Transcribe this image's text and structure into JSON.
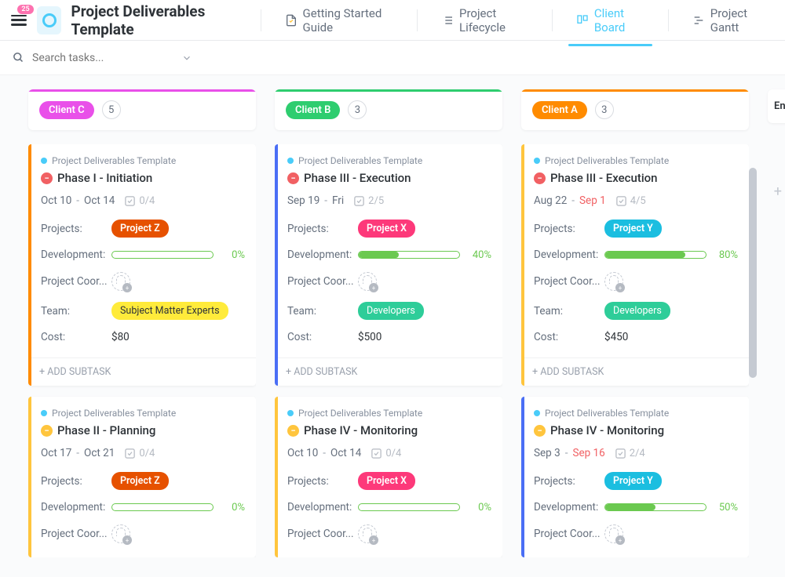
{
  "header": {
    "badge": "25",
    "title": "Project Deliverables Template",
    "tabs": [
      {
        "label": "Getting Started Guide",
        "icon": "doc",
        "active": false
      },
      {
        "label": "Project Lifecycle",
        "icon": "list",
        "active": false
      },
      {
        "label": "Client Board",
        "icon": "board",
        "active": true
      },
      {
        "label": "Project Gantt",
        "icon": "gantt",
        "active": false
      }
    ]
  },
  "search": {
    "placeholder": "Search tasks..."
  },
  "colors": {
    "clientA": "#ff8b00",
    "clientB": "#2ecd6f",
    "clientC": "#e950e9",
    "projectY": "#1bbee0",
    "projectX": "#fd397a",
    "projectZ": "#e65100",
    "teamDev": "#2ecd99",
    "teamSME": "#ffeb3b",
    "teamSMEText": "#2e3338",
    "accentYellow": "#ffc53d",
    "accentBlue": "#4a6ef5",
    "accentOrange": "#ff8b00"
  },
  "columns": [
    {
      "name": "Client A",
      "color": "#ff8b00",
      "count": "3",
      "cards": [
        {
          "accent": "#ffc53d",
          "crumb": "Project Deliverables Template",
          "statusIcon": "minus",
          "title": "Phase III - Execution",
          "start": "Aug 22",
          "end": "Sep 1",
          "overdue": true,
          "checks": "4/5",
          "project": {
            "label": "Project Y",
            "color": "#1bbee0"
          },
          "devPct": 80,
          "team": {
            "label": "Developers",
            "color": "#2ecd99",
            "text": "#fff"
          },
          "cost": "$450"
        },
        {
          "accent": "#4a6ef5",
          "crumb": "Project Deliverables Template",
          "statusIcon": "plus",
          "title": "Phase IV - Monitoring",
          "start": "Sep 3",
          "end": "Sep 16",
          "overdue": true,
          "checks": "2/4",
          "project": {
            "label": "Project Y",
            "color": "#1bbee0"
          },
          "devPct": 50,
          "team": null,
          "cost": null
        }
      ]
    },
    {
      "name": "Client B",
      "color": "#2ecd6f",
      "count": "3",
      "cards": [
        {
          "accent": "#4a6ef5",
          "crumb": "Project Deliverables Template",
          "statusIcon": "minus",
          "title": "Phase III - Execution",
          "start": "Sep 19",
          "end": "Fri",
          "overdue": false,
          "checks": "2/5",
          "project": {
            "label": "Project X",
            "color": "#fd397a"
          },
          "devPct": 40,
          "team": {
            "label": "Developers",
            "color": "#2ecd99",
            "text": "#fff"
          },
          "cost": "$500"
        },
        {
          "accent": "#ffc53d",
          "crumb": "Project Deliverables Template",
          "statusIcon": "plus",
          "title": "Phase IV - Monitoring",
          "start": "Oct 10",
          "end": "Oct 14",
          "overdue": false,
          "checks": "0/4",
          "project": {
            "label": "Project X",
            "color": "#fd397a"
          },
          "devPct": 0,
          "team": null,
          "cost": null
        }
      ]
    },
    {
      "name": "Client C",
      "color": "#e950e9",
      "count": "5",
      "cards": [
        {
          "accent": "#ff8b00",
          "crumb": "Project Deliverables Template",
          "statusIcon": "minus",
          "title": "Phase I - Initiation",
          "start": "Oct 10",
          "end": "Oct 14",
          "overdue": false,
          "checks": "0/4",
          "project": {
            "label": "Project Z",
            "color": "#e65100"
          },
          "devPct": 0,
          "team": {
            "label": "Subject Matter Experts",
            "color": "#ffeb3b",
            "text": "#2e3338"
          },
          "cost": "$80"
        },
        {
          "accent": "#ffc53d",
          "crumb": "Project Deliverables Template",
          "statusIcon": "plus",
          "title": "Phase II - Planning",
          "start": "Oct 17",
          "end": "Oct 21",
          "overdue": false,
          "checks": "0/4",
          "project": {
            "label": "Project Z",
            "color": "#e65100"
          },
          "devPct": 0,
          "team": null,
          "cost": null
        }
      ]
    }
  ],
  "labels": {
    "projects": "Projects:",
    "development": "Development:",
    "coordinator": "Project Coor...",
    "team": "Team:",
    "cost": "Cost:",
    "addSubtask": "+ ADD SUBTASK",
    "extraCol": "En"
  }
}
